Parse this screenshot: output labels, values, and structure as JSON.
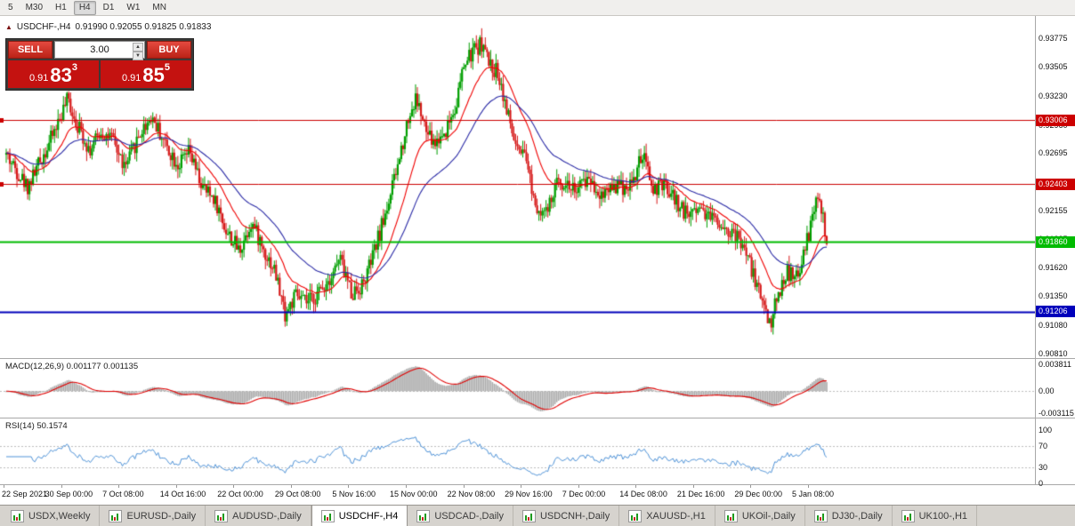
{
  "toolbar": {
    "timeframes": [
      {
        "label": "5",
        "active": false
      },
      {
        "label": "M30",
        "active": false
      },
      {
        "label": "H1",
        "active": false
      },
      {
        "label": "H4",
        "active": true
      },
      {
        "label": "D1",
        "active": false
      },
      {
        "label": "W1",
        "active": false
      },
      {
        "label": "MN",
        "active": false
      }
    ]
  },
  "chart": {
    "title": "USDCHF-,H4",
    "ohlc": "0.91990 0.92055 0.91825 0.91833"
  },
  "trade_panel": {
    "sell_label": "SELL",
    "buy_label": "BUY",
    "volume": "3.00",
    "sell_price_main": "0.91",
    "sell_price_big": "83",
    "sell_price_sup": "3",
    "buy_price_main": "0.91",
    "buy_price_big": "85",
    "buy_price_sup": "5"
  },
  "price_axis": {
    "top_value": 0.93775,
    "bottom_value": 0.9081,
    "ticks": [
      "0.93775",
      "0.93505",
      "0.93230",
      "0.92960",
      "0.92695",
      "0.92420",
      "0.92155",
      "0.91885",
      "0.91620",
      "0.91350",
      "0.91080",
      "0.90810"
    ]
  },
  "hlines": [
    {
      "price": 0.93006,
      "label": "0.93006",
      "color": "#cc0000",
      "width": 1
    },
    {
      "price": 0.92403,
      "label": "0.92403",
      "color": "#cc0000",
      "width": 1
    },
    {
      "price": 0.9186,
      "label": "0.91860",
      "color": "#00bb00",
      "width": 2
    },
    {
      "price": 0.91206,
      "label": "0.91206",
      "color": "#0000bb",
      "width": 2
    }
  ],
  "macd": {
    "label": "MACD(12,26,9) 0.001177 0.001135",
    "fast": 12,
    "slow": 26,
    "signal": 9,
    "scale_top": "0.003811",
    "scale_mid": "0.00",
    "scale_bottom": "-0.003115",
    "scale_top_value": 0.00381,
    "scale_bottom_value": -0.00311
  },
  "rsi": {
    "label": "RSI(14) 50.1574",
    "period": 14,
    "ticks": [
      {
        "value": 100,
        "label": "100"
      },
      {
        "value": 70,
        "label": "70"
      },
      {
        "value": 30,
        "label": "30"
      },
      {
        "value": 0,
        "label": "0"
      }
    ],
    "levels": [
      70,
      30
    ]
  },
  "time_axis": {
    "labels": [
      "22 Sep 2021",
      "30 Sep 00:00",
      "7 Oct 08:00",
      "14 Oct 16:00",
      "22 Oct 00:00",
      "29 Oct 08:00",
      "5 Nov 16:00",
      "15 Nov 00:00",
      "22 Nov 08:00",
      "29 Nov 16:00",
      "7 Dec 00:00",
      "14 Dec 08:00",
      "21 Dec 16:00",
      "29 Dec 00:00",
      "5 Jan 08:00"
    ]
  },
  "tabs": [
    {
      "label": "USDX,Weekly",
      "active": false
    },
    {
      "label": "EURUSD-,Daily",
      "active": false
    },
    {
      "label": "AUDUSD-,Daily",
      "active": false
    },
    {
      "label": "USDCHF-,H4",
      "active": true
    },
    {
      "label": "USDCAD-,Daily",
      "active": false
    },
    {
      "label": "USDCNH-,Daily",
      "active": false
    },
    {
      "label": "XAUUSD-,H1",
      "active": false
    },
    {
      "label": "UKOil-,Daily",
      "active": false
    },
    {
      "label": "DJ30-,Daily",
      "active": false
    },
    {
      "label": "UK100-,H1",
      "active": false
    }
  ],
  "chart_data": {
    "type": "candlestick",
    "symbol": "USDCHF-",
    "timeframe": "H4",
    "bars": 460,
    "noise_seed": 42,
    "noise_amp": 0.0016,
    "wick_amp": 0.0009,
    "ma_fast_period": 21,
    "ma_slow_period": 48,
    "ylim": [
      0.9081,
      0.93775
    ],
    "anchors": [
      [
        0.0,
        0.9268
      ],
      [
        0.026,
        0.9238
      ],
      [
        0.053,
        0.928
      ],
      [
        0.075,
        0.932
      ],
      [
        0.085,
        0.93
      ],
      [
        0.102,
        0.9272
      ],
      [
        0.115,
        0.929
      ],
      [
        0.129,
        0.9282
      ],
      [
        0.145,
        0.9255
      ],
      [
        0.161,
        0.9285
      ],
      [
        0.177,
        0.9305
      ],
      [
        0.194,
        0.9278
      ],
      [
        0.21,
        0.9258
      ],
      [
        0.223,
        0.927
      ],
      [
        0.24,
        0.9235
      ],
      [
        0.253,
        0.9228
      ],
      [
        0.269,
        0.9195
      ],
      [
        0.284,
        0.9178
      ],
      [
        0.299,
        0.9205
      ],
      [
        0.313,
        0.918
      ],
      [
        0.327,
        0.916
      ],
      [
        0.34,
        0.9118
      ],
      [
        0.353,
        0.9135
      ],
      [
        0.367,
        0.9128
      ],
      [
        0.381,
        0.9138
      ],
      [
        0.396,
        0.9155
      ],
      [
        0.407,
        0.917
      ],
      [
        0.421,
        0.9138
      ],
      [
        0.435,
        0.9146
      ],
      [
        0.448,
        0.9175
      ],
      [
        0.461,
        0.921
      ],
      [
        0.475,
        0.925
      ],
      [
        0.489,
        0.93
      ],
      [
        0.5,
        0.9322
      ],
      [
        0.511,
        0.929
      ],
      [
        0.522,
        0.9278
      ],
      [
        0.535,
        0.929
      ],
      [
        0.548,
        0.9315
      ],
      [
        0.558,
        0.9352
      ],
      [
        0.572,
        0.9368
      ],
      [
        0.58,
        0.9373
      ],
      [
        0.589,
        0.9352
      ],
      [
        0.6,
        0.9345
      ],
      [
        0.613,
        0.93
      ],
      [
        0.623,
        0.927
      ],
      [
        0.634,
        0.9262
      ],
      [
        0.645,
        0.9222
      ],
      [
        0.659,
        0.9212
      ],
      [
        0.673,
        0.9245
      ],
      [
        0.684,
        0.924
      ],
      [
        0.697,
        0.9235
      ],
      [
        0.71,
        0.9248
      ],
      [
        0.724,
        0.923
      ],
      [
        0.738,
        0.924
      ],
      [
        0.751,
        0.9238
      ],
      [
        0.764,
        0.9242
      ],
      [
        0.775,
        0.9268
      ],
      [
        0.789,
        0.9235
      ],
      [
        0.803,
        0.9238
      ],
      [
        0.816,
        0.9225
      ],
      [
        0.829,
        0.9212
      ],
      [
        0.843,
        0.922
      ],
      [
        0.857,
        0.9212
      ],
      [
        0.87,
        0.9205
      ],
      [
        0.883,
        0.9195
      ],
      [
        0.897,
        0.9185
      ],
      [
        0.911,
        0.9155
      ],
      [
        0.922,
        0.913
      ],
      [
        0.931,
        0.9108
      ],
      [
        0.94,
        0.9135
      ],
      [
        0.951,
        0.9158
      ],
      [
        0.962,
        0.915
      ],
      [
        0.971,
        0.917
      ],
      [
        0.98,
        0.92
      ],
      [
        0.989,
        0.9228
      ],
      [
        0.996,
        0.9205
      ],
      [
        1.0,
        0.9183
      ]
    ],
    "style": {
      "up_color": "#009f00",
      "down_color": "#d61a1a",
      "ma_fast_color": "#f00000",
      "ma_slow_color": "#2a2aa6",
      "macd_hist_color": "#ababab",
      "macd_signal_color": "#e00000",
      "rsi_color": "#4f93d8",
      "level_color": "#bdbdbd",
      "background": "#ffffff"
    }
  }
}
